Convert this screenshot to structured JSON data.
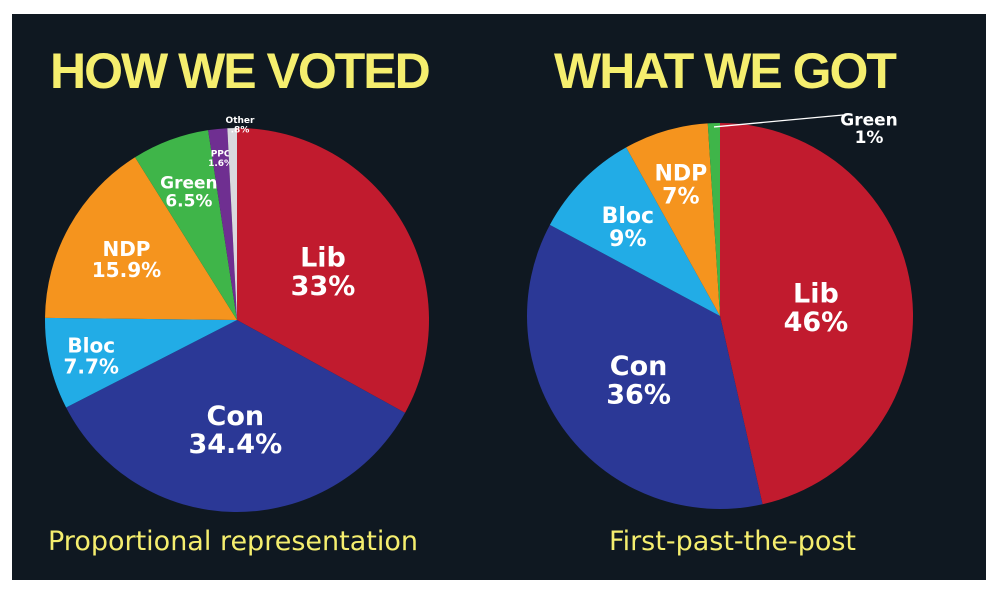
{
  "chart_data": [
    {
      "type": "pie",
      "title": "HOW WE VOTED",
      "subtitle": "Proportional representation",
      "slices": [
        {
          "label": "Lib",
          "value": 33,
          "value_label": "33%",
          "color": "#c11b2e"
        },
        {
          "label": "Con",
          "value": 34.4,
          "value_label": "34.4%",
          "color": "#2b3896"
        },
        {
          "label": "Bloc",
          "value": 7.7,
          "value_label": "7.7%",
          "color": "#22ace6"
        },
        {
          "label": "NDP",
          "value": 15.9,
          "value_label": "15.9%",
          "color": "#f5941e"
        },
        {
          "label": "Green",
          "value": 6.5,
          "value_label": "6.5%",
          "color": "#3fb549"
        },
        {
          "label": "PPC",
          "value": 1.6,
          "value_label": "1.6%",
          "color": "#6f2f91"
        },
        {
          "label": "Other",
          "value": 0.8,
          "value_label": ".8%",
          "color": "#d9d9de"
        }
      ]
    },
    {
      "type": "pie",
      "title": "WHAT WE GOT",
      "subtitle": "First-past-the-post",
      "slices": [
        {
          "label": "Lib",
          "value": 46,
          "value_label": "46%",
          "color": "#c11b2e"
        },
        {
          "label": "Con",
          "value": 36,
          "value_label": "36%",
          "color": "#2b3896"
        },
        {
          "label": "Bloc",
          "value": 9,
          "value_label": "9%",
          "color": "#22ace6"
        },
        {
          "label": "NDP",
          "value": 7,
          "value_label": "7%",
          "color": "#f5941e"
        },
        {
          "label": "Green",
          "value": 1,
          "value_label": "1%",
          "color": "#3fb549"
        }
      ]
    }
  ]
}
